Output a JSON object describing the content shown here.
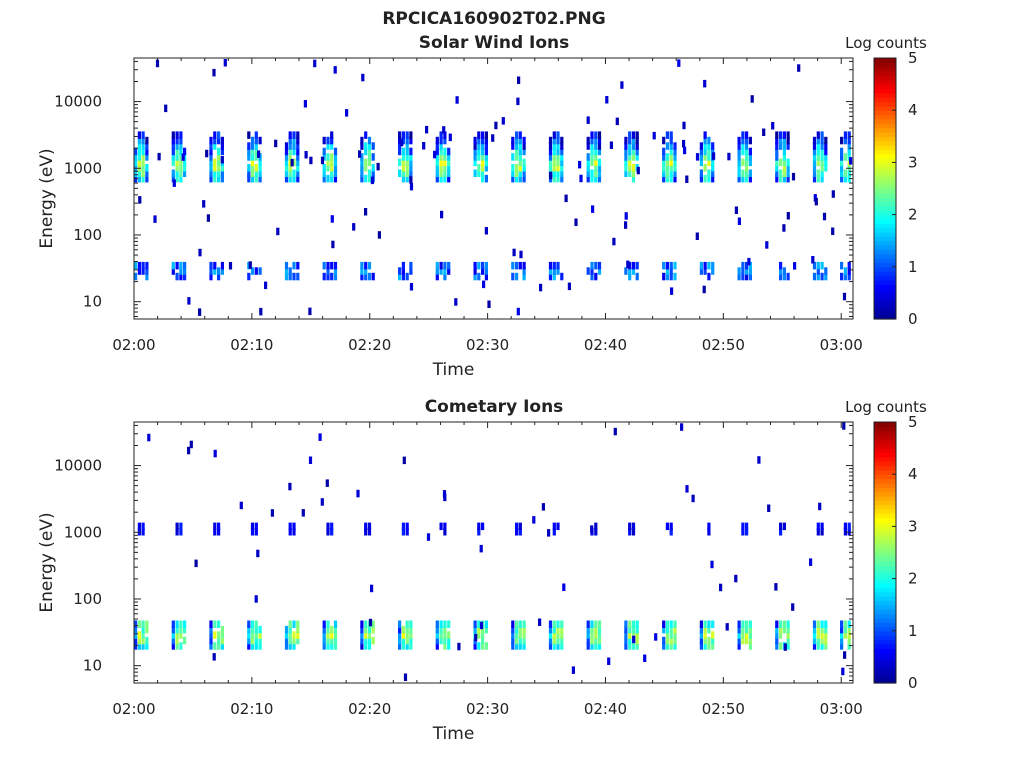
{
  "figure": {
    "title": "RPCICA160902T02.PNG"
  },
  "colorbar": {
    "label": "Log counts",
    "min": 0,
    "max": 5,
    "ticks": [
      "0",
      "1",
      "2",
      "3",
      "4",
      "5"
    ],
    "colormap": [
      "#00008f",
      "#0000ff",
      "#007fff",
      "#00ffff",
      "#7fff7f",
      "#ffff00",
      "#ff7f00",
      "#ff0000",
      "#7f0000"
    ]
  },
  "chart_data": [
    {
      "type": "heatmap",
      "panel": "top",
      "title": "Solar Wind Ions",
      "xlabel": "Time",
      "ylabel": "Energy (eV)",
      "x_ticks": [
        "02:00",
        "02:10",
        "02:20",
        "02:30",
        "02:40",
        "02:50",
        "03:00"
      ],
      "x_range_minutes": [
        0,
        61
      ],
      "y_scale": "log",
      "y_ticks": [
        "10",
        "100",
        "1000",
        "10000"
      ],
      "y_range": [
        5.5,
        45000
      ],
      "scan_times_min": [
        0.6,
        3.8,
        7.0,
        10.2,
        13.4,
        16.6,
        19.8,
        23.0,
        26.2,
        29.4,
        32.6,
        35.8,
        39.0,
        42.2,
        45.4,
        48.6,
        51.8,
        55.0,
        58.2,
        60.5
      ],
      "peak_band_ev": [
        700,
        3600
      ],
      "peak_center_ev": 1300,
      "peak_log_counts": 2.9,
      "low_band_ev": [
        25,
        45
      ],
      "low_log_counts": 1.6
    },
    {
      "type": "heatmap",
      "panel": "bottom",
      "title": "Cometary Ions",
      "xlabel": "Time",
      "ylabel": "Energy (eV)",
      "x_ticks": [
        "02:00",
        "02:10",
        "02:20",
        "02:30",
        "02:40",
        "02:50",
        "03:00"
      ],
      "x_range_minutes": [
        0,
        61
      ],
      "y_scale": "log",
      "y_ticks": [
        "10",
        "100",
        "1000",
        "10000"
      ],
      "y_range": [
        5.5,
        45000
      ],
      "scan_times_min": [
        0.6,
        3.8,
        7.0,
        10.2,
        13.4,
        16.6,
        19.8,
        23.0,
        26.2,
        29.4,
        32.6,
        35.8,
        39.0,
        42.2,
        45.4,
        48.6,
        51.8,
        55.0,
        58.2,
        60.5
      ],
      "peak_band_ev": [
        20,
        55
      ],
      "peak_center_ev": 33,
      "peak_log_counts": 2.7,
      "high_band_ev": [
        1100,
        1500
      ],
      "high_log_counts": 0.8
    }
  ]
}
